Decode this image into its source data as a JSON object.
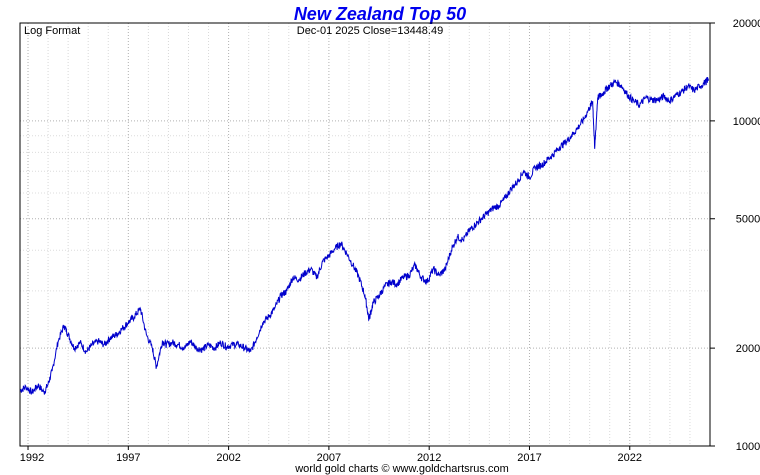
{
  "chart_data": {
    "type": "line",
    "title": "New Zealand Top 50",
    "subtitle": "Dec-01  2025   Close=13448.49",
    "scale_note": "Log Format",
    "footer": "world gold charts © www.goldchartsrus.com",
    "y_scale": "log",
    "ylim": [
      1000,
      20000
    ],
    "y_ticks": [
      1000,
      2000,
      5000,
      10000,
      20000
    ],
    "y_tick_labels": [
      "1000",
      "2000",
      "5000",
      "10000",
      "20000"
    ],
    "x_ticks": [
      1992,
      1997,
      2002,
      2007,
      2012,
      2017,
      2022
    ],
    "x_tick_labels": [
      "1992",
      "1997",
      "2002",
      "2007",
      "2012",
      "2017",
      "2022"
    ],
    "xlim": [
      1991.6,
      2026.0
    ],
    "grid": true,
    "line_color": "#0000cc",
    "series": [
      {
        "x": [
          1991.6,
          1991.9,
          1992.2,
          1992.5,
          1992.8,
          1993.0,
          1993.2,
          1993.5,
          1993.8,
          1994.0,
          1994.3,
          1994.6,
          1994.9,
          1995.2,
          1995.5,
          1995.8,
          1996.1,
          1996.4,
          1996.7,
          1997.0,
          1997.3,
          1997.6,
          1997.9,
          1998.2,
          1998.4,
          1998.7,
          1998.9,
          1999.2,
          1999.5,
          1999.8,
          2000.1,
          2000.4,
          2000.7,
          2001.0,
          2001.3,
          2001.6,
          2001.9,
          2002.2,
          2002.5,
          2002.8,
          2003.1,
          2003.4,
          2003.7,
          2004.0,
          2004.3,
          2004.6,
          2004.9,
          2005.2,
          2005.5,
          2005.8,
          2006.1,
          2006.4,
          2006.7,
          2007.0,
          2007.3,
          2007.6,
          2007.9,
          2008.2,
          2008.5,
          2008.8,
          2009.0,
          2009.2,
          2009.5,
          2009.8,
          2010.1,
          2010.4,
          2010.7,
          2011.0,
          2011.3,
          2011.6,
          2011.9,
          2012.2,
          2012.5,
          2012.8,
          2013.1,
          2013.4,
          2013.7,
          2014.0,
          2014.3,
          2014.6,
          2014.9,
          2015.2,
          2015.5,
          2015.8,
          2016.1,
          2016.4,
          2016.7,
          2017.0,
          2017.3,
          2017.6,
          2017.9,
          2018.2,
          2018.5,
          2018.8,
          2019.1,
          2019.4,
          2019.7,
          2020.0,
          2020.15,
          2020.25,
          2020.4,
          2020.6,
          2020.8,
          2021.0,
          2021.3,
          2021.6,
          2021.9,
          2022.2,
          2022.5,
          2022.8,
          2023.1,
          2023.4,
          2023.7,
          2024.0,
          2024.3,
          2024.6,
          2024.9,
          2025.2,
          2025.5,
          2025.8,
          2025.92
        ],
        "y": [
          1480,
          1520,
          1460,
          1540,
          1460,
          1550,
          1700,
          2100,
          2350,
          2200,
          2000,
          2080,
          1950,
          2050,
          2100,
          2050,
          2150,
          2200,
          2300,
          2400,
          2500,
          2650,
          2200,
          2000,
          1750,
          2100,
          2050,
          2080,
          2050,
          2000,
          2100,
          2000,
          1980,
          2050,
          2000,
          2080,
          2020,
          2050,
          2050,
          2000,
          1950,
          2150,
          2400,
          2500,
          2650,
          2900,
          3000,
          3300,
          3250,
          3400,
          3500,
          3300,
          3700,
          3850,
          4050,
          4200,
          3900,
          3600,
          3300,
          2900,
          2450,
          2750,
          2900,
          3100,
          3200,
          3150,
          3300,
          3350,
          3600,
          3300,
          3200,
          3500,
          3350,
          3500,
          4000,
          4400,
          4300,
          4600,
          4800,
          5000,
          5200,
          5400,
          5500,
          5800,
          6200,
          6500,
          7000,
          6700,
          7200,
          7300,
          7600,
          7900,
          8300,
          8600,
          9000,
          9500,
          10100,
          11000,
          11500,
          8200,
          11800,
          12000,
          12500,
          12800,
          13200,
          12800,
          12000,
          11500,
          11200,
          11800,
          11600,
          11600,
          11900,
          11500,
          12000,
          12300,
          12800,
          12400,
          12800,
          13200,
          13448.49
        ]
      }
    ]
  }
}
